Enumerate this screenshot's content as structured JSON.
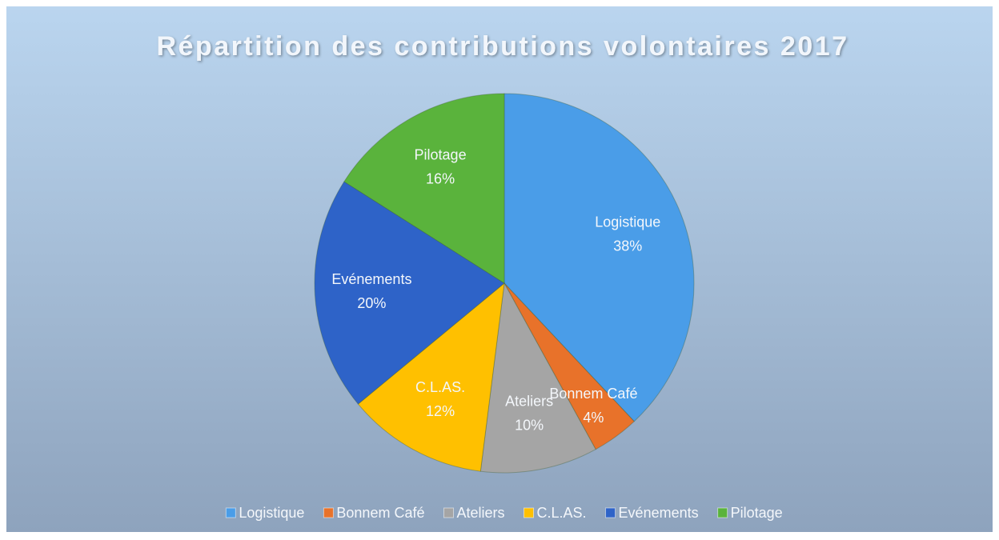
{
  "chart_data": {
    "type": "pie",
    "title": "Répartition des contributions volontaires 2017",
    "categories": [
      "Logistique",
      "Bonnem Café",
      "Ateliers",
      "C.L.AS.",
      "Evénements",
      "Pilotage"
    ],
    "values": [
      38,
      4,
      10,
      12,
      20,
      16
    ],
    "value_labels": [
      "38%",
      "4%",
      "10%",
      "12%",
      "20%",
      "16%"
    ],
    "colors": [
      "#4a9de8",
      "#e8722a",
      "#a5a5a5",
      "#ffc000",
      "#2e63c8",
      "#5ab33c"
    ],
    "legend": "bottom"
  }
}
